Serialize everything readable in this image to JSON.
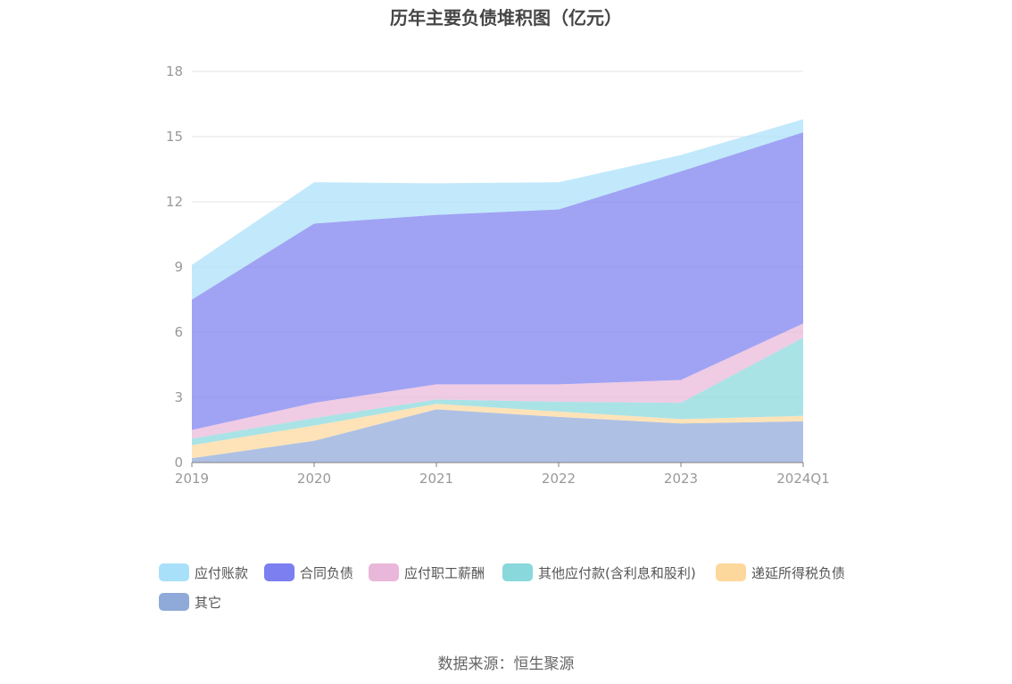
{
  "title": "历年主要负债堆积图（亿元）",
  "source": "数据来源：恒生聚源",
  "chart_data": {
    "type": "area",
    "stacked": true,
    "title": "历年主要负债堆积图（亿元）",
    "categories": [
      "2019",
      "2020",
      "2021",
      "2022",
      "2023",
      "2024Q1"
    ],
    "ylim": [
      0,
      18
    ],
    "yticks": [
      "0",
      "3",
      "6",
      "9",
      "12",
      "15",
      "18"
    ],
    "grid": true,
    "legend_position": "bottom",
    "series": [
      {
        "name": "其它",
        "color": "#8fa9d9",
        "values": [
          0.2,
          1.0,
          2.45,
          2.1,
          1.8,
          1.9
        ]
      },
      {
        "name": "递延所得税负债",
        "color": "#fdd89c",
        "values": [
          0.6,
          0.7,
          0.25,
          0.25,
          0.2,
          0.25
        ]
      },
      {
        "name": "其他应付款(含利息和股利)",
        "color": "#88d8dc",
        "values": [
          0.3,
          0.35,
          0.2,
          0.45,
          0.75,
          3.6
        ]
      },
      {
        "name": "应付职工薪酬",
        "color": "#e9b7d9",
        "values": [
          0.4,
          0.7,
          0.7,
          0.8,
          1.05,
          0.65
        ]
      },
      {
        "name": "合同负债",
        "color": "#7b7ff0",
        "values": [
          6.0,
          8.25,
          7.8,
          8.05,
          9.6,
          8.8
        ]
      },
      {
        "name": "应付账款",
        "color": "#a9e0f9",
        "values": [
          1.6,
          1.9,
          1.45,
          1.25,
          0.75,
          0.6
        ]
      }
    ]
  }
}
